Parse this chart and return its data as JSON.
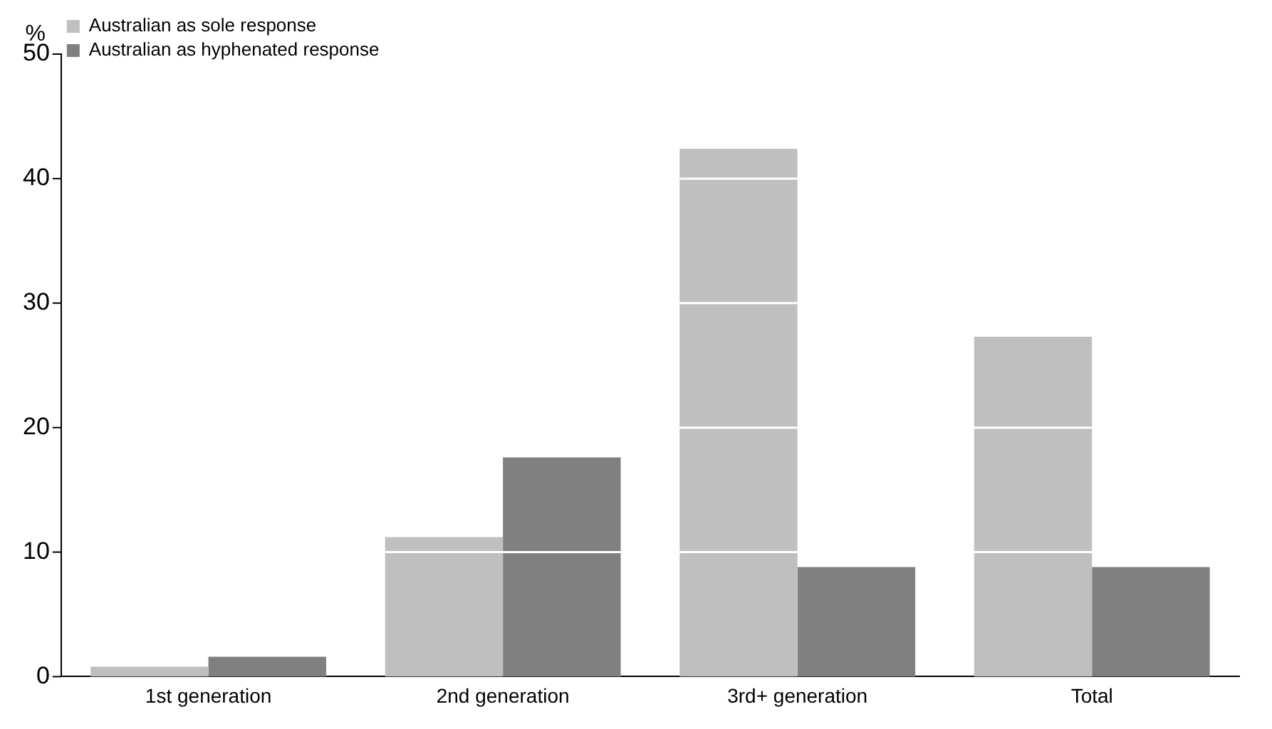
{
  "chart_data": {
    "type": "bar",
    "ylabel": "%",
    "categories": [
      "1st generation",
      "2nd generation",
      "3rd+ generation",
      "Total"
    ],
    "series": [
      {
        "name": "Australian as sole response",
        "color": "#bfbfbf",
        "values": [
          0.8,
          11.2,
          42.4,
          27.3
        ]
      },
      {
        "name": "Australian as hyphenated response",
        "color": "#808080",
        "values": [
          1.6,
          17.6,
          8.8,
          8.8
        ]
      }
    ],
    "ylim": [
      0,
      50
    ],
    "yticks": [
      0,
      10,
      20,
      30,
      40,
      50
    ],
    "grid": "y",
    "legend": "top left"
  }
}
